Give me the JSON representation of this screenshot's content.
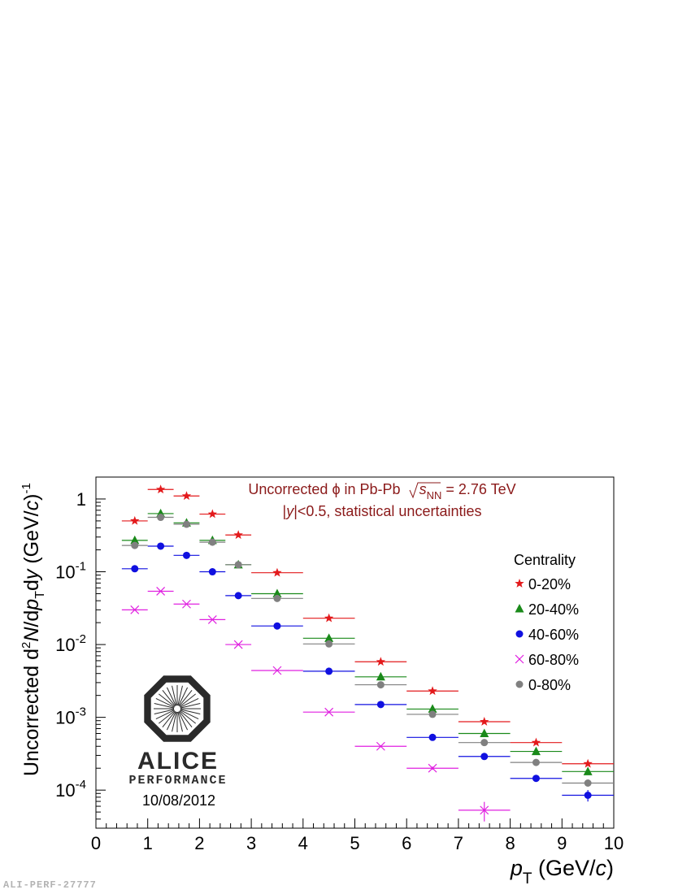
{
  "chart_data": {
    "type": "scatter",
    "x_scale": "linear",
    "y_scale": "log",
    "xlim": [
      0,
      10
    ],
    "ylim": [
      3e-05,
      2.0
    ],
    "x_major_ticks": [
      0,
      1,
      2,
      3,
      4,
      5,
      6,
      7,
      8,
      9,
      10
    ],
    "x_tick_labels": [
      "0",
      "1",
      "2",
      "3",
      "4",
      "5",
      "6",
      "7",
      "8",
      "9",
      "10"
    ],
    "y_major_ticks": [
      0.0001,
      0.001,
      0.01,
      0.1,
      1
    ],
    "y_tick_labels": [
      {
        "mant": "10",
        "exp": "-4"
      },
      {
        "mant": "10",
        "exp": "-3"
      },
      {
        "mant": "10",
        "exp": "-2"
      },
      {
        "mant": "10",
        "exp": "-1"
      },
      {
        "mant": "1",
        "exp": ""
      }
    ],
    "xlabel": {
      "p": "p",
      "sub": "T",
      "rest": " (GeV/",
      "c": "c",
      "close": ")"
    },
    "ylabel": {
      "a": "Uncorrected d",
      "sup2": "2",
      "N": "N",
      "b": "/d",
      "p": "p",
      "subT": "T",
      "c": "d",
      "y": "y",
      "d": " (GeV/",
      "cc": "c",
      "e": ")",
      "supm1": "-1"
    },
    "annotation": {
      "line1_a": "Uncorrected ",
      "phi": "ϕ",
      "line1_b": " in Pb-Pb ",
      "s": "s",
      "sub": "NN",
      "line1_c": " = 2.76 TeV",
      "line2_a": "|",
      "line2_y": "y",
      "line2_b": "|<0.5, statistical uncertainties"
    },
    "legend": {
      "title": "Centrality",
      "placement": "right"
    },
    "bins": [
      [
        0.5,
        1.0
      ],
      [
        1.0,
        1.5
      ],
      [
        1.5,
        2.0
      ],
      [
        2.0,
        2.5
      ],
      [
        2.5,
        3.0
      ],
      [
        3.0,
        4.0
      ],
      [
        4.0,
        5.0
      ],
      [
        5.0,
        6.0
      ],
      [
        6.0,
        7.0
      ],
      [
        7.0,
        8.0
      ],
      [
        8.0,
        9.0
      ],
      [
        9.0,
        10.0
      ]
    ],
    "x": [
      0.75,
      1.25,
      1.75,
      2.25,
      2.75,
      3.5,
      4.5,
      5.5,
      6.5,
      7.5,
      8.5,
      9.5
    ],
    "series": [
      {
        "name": "0-20%",
        "marker": "star",
        "color": "#e31a1c",
        "values": [
          0.5,
          1.35,
          1.1,
          0.62,
          0.32,
          0.097,
          0.023,
          0.0058,
          0.0023,
          0.00087,
          0.00045,
          0.00023
        ],
        "yerr_rel": [
          0,
          0,
          0,
          0,
          0,
          0,
          0,
          0,
          0.02,
          0.03,
          0.04,
          0.06
        ]
      },
      {
        "name": "20-40%",
        "marker": "triangle",
        "color": "#1a8a1a",
        "values": [
          0.27,
          0.63,
          0.47,
          0.27,
          0.125,
          0.05,
          0.0122,
          0.0036,
          0.0013,
          0.0006,
          0.00034,
          0.00018
        ],
        "yerr_rel": [
          0,
          0,
          0,
          0,
          0,
          0,
          0,
          0,
          0.03,
          0.04,
          0.06,
          0.08
        ]
      },
      {
        "name": "40-60%",
        "marker": "circle",
        "color": "#1010e0",
        "values": [
          0.11,
          0.225,
          0.168,
          0.1,
          0.047,
          0.018,
          0.0043,
          0.0015,
          0.00053,
          0.00029,
          0.000145,
          8.5e-05
        ],
        "yerr_rel": [
          0,
          0,
          0,
          0,
          0,
          0,
          0,
          0,
          0.04,
          0.05,
          0.08,
          0.18
        ]
      },
      {
        "name": "60-80%",
        "marker": "cross",
        "color": "#e020e0",
        "values": [
          0.03,
          0.054,
          0.036,
          0.022,
          0.01,
          0.0044,
          0.00118,
          0.0004,
          0.0002,
          5.3e-05
        ],
        "yerr_rel": [
          0,
          0,
          0,
          0,
          0,
          0,
          0,
          0.03,
          0.05,
          0.3
        ]
      },
      {
        "name": "0-80%",
        "marker": "circle",
        "color": "#808080",
        "values": [
          0.23,
          0.56,
          0.45,
          0.255,
          0.125,
          0.043,
          0.0102,
          0.0028,
          0.0011,
          0.00045,
          0.00024,
          0.000125
        ],
        "yerr_rel": [
          0,
          0,
          0,
          0,
          0,
          0,
          0,
          0,
          0.03,
          0.04,
          0.06,
          0.1
        ]
      }
    ]
  },
  "logo": {
    "name": "ALICE",
    "subtitle": "PERFORMANCE",
    "date": "10/08/2012"
  },
  "footer_id": "ALI-PERF-27777"
}
